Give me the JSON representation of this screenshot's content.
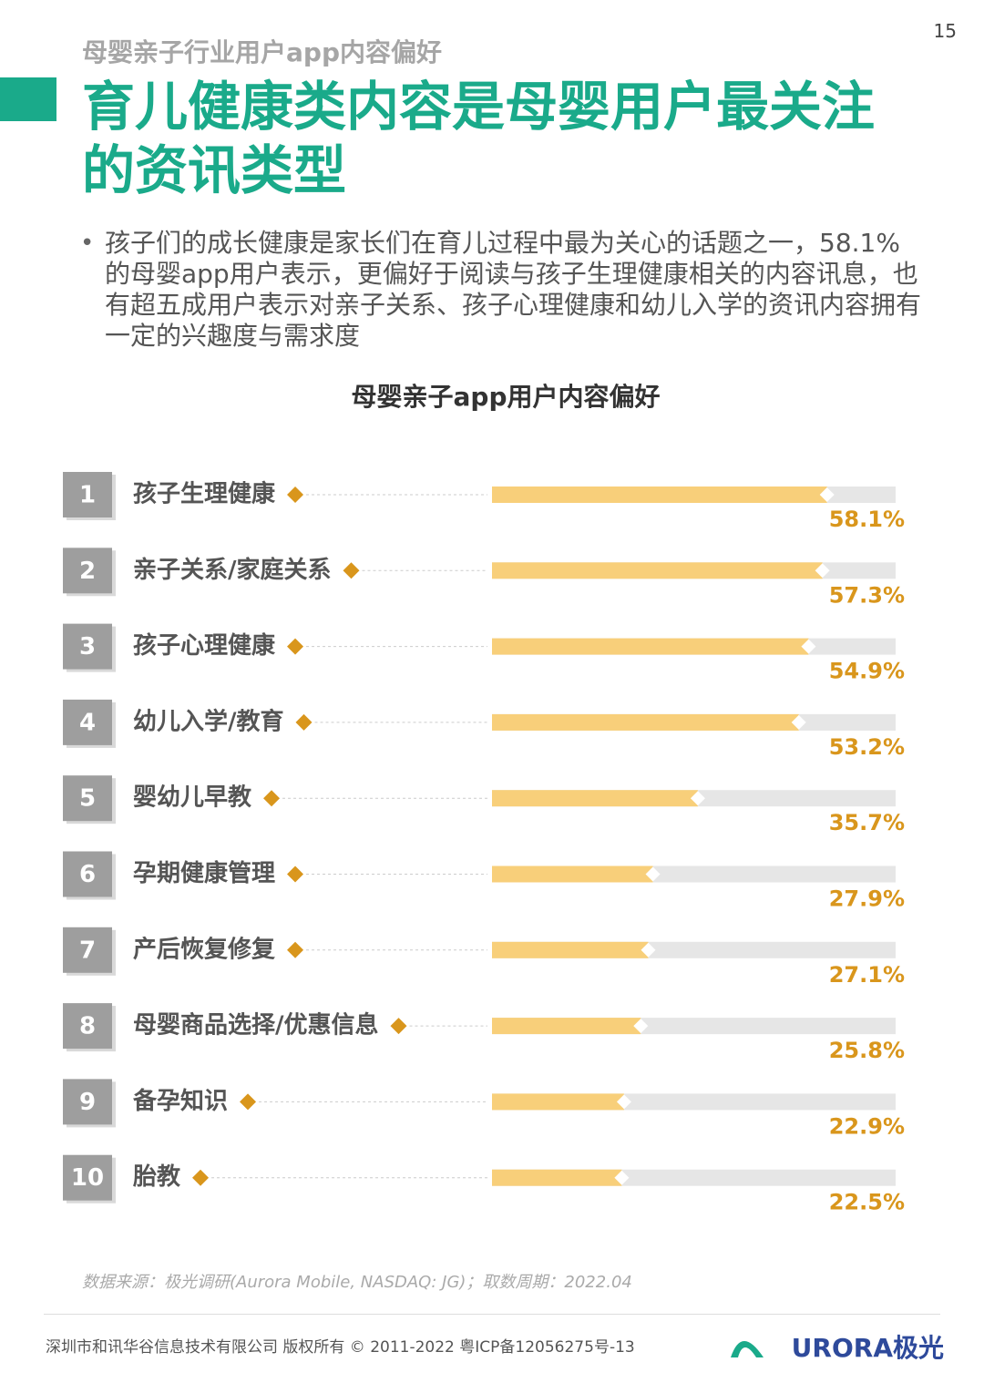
{
  "page_number": "15",
  "subtitle": "母婴亲子行业用户app内容偏好",
  "title": "育儿健康类内容是母婴用户最关注的资讯类型",
  "bullet": "孩子们的成长健康是家长们在育儿过程中最为关心的话题之一，58.1%的母婴app用户表示，更偏好于阅读与孩子生理健康相关的内容讯息，也有超五成用户表示对亲子关系、孩子心理健康和幼儿入学的资讯内容拥有一定的兴趣度与需求度",
  "source": "数据来源：极光调研(Aurora Mobile, NASDAQ: JG)；取数周期：2022.04",
  "footer": "深圳市和讯华谷信息技术有限公司 版权所有 © 2011-2022 粤ICP备12056275号-13",
  "logo": "URORA极光",
  "chart_data": {
    "type": "bar",
    "orientation": "horizontal",
    "title": "母婴亲子app用户内容偏好",
    "ranks": [
      "1",
      "2",
      "3",
      "4",
      "5",
      "6",
      "7",
      "8",
      "9",
      "10"
    ],
    "categories": [
      "孩子生理健康",
      "亲子关系/家庭关系",
      "孩子心理健康",
      "幼儿入学/教育",
      "婴幼儿早教",
      "孕期健康管理",
      "产后恢复修复",
      "母婴商品选择/优惠信息",
      "备孕知识",
      "胎教"
    ],
    "values": [
      58.1,
      57.3,
      54.9,
      53.2,
      35.7,
      27.9,
      27.1,
      25.8,
      22.9,
      22.5
    ],
    "value_labels": [
      "58.1%",
      "57.3%",
      "54.9%",
      "53.2%",
      "35.7%",
      "27.9%",
      "27.1%",
      "25.8%",
      "22.9%",
      "22.5%"
    ],
    "color": "#f8cf7a",
    "xlim": [
      0,
      70
    ]
  }
}
